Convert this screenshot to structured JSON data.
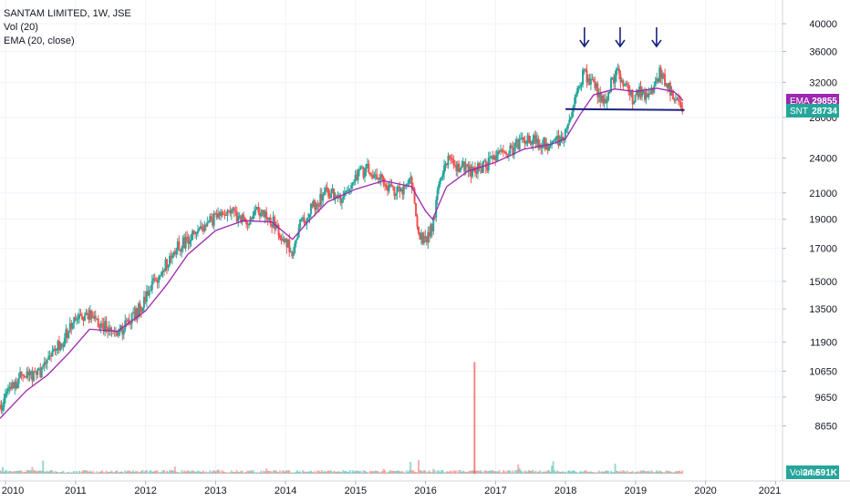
{
  "legend": {
    "symbol_line": "SANTAM LIMITED, 1W, JSE",
    "volume_line": "Vol (20)",
    "ema_line": "EMA (20, close)"
  },
  "badges": {
    "ema": {
      "label": "EMA",
      "value": "29855",
      "color": "#9c27b0"
    },
    "price": {
      "label": "SNT",
      "value": "28734",
      "color": "#26a69a"
    },
    "volume": {
      "label": "Volume",
      "value": "24.591K",
      "color": "#26a69a"
    }
  },
  "chart_data": {
    "type": "candlestick",
    "y_scale": "log",
    "ylim": [
      8000,
      42000
    ],
    "xlim": [
      2009.92,
      2021.1
    ],
    "y_ticks": [
      "40000",
      "36000",
      "32000",
      "28000",
      "24000",
      "21000",
      "19000",
      "17000",
      "15000",
      "13500",
      "11900",
      "10650",
      "9650",
      "8650"
    ],
    "x_ticks": [
      "2010",
      "2011",
      "2012",
      "2013",
      "2014",
      "2015",
      "2016",
      "2017",
      "2018",
      "2019",
      "2020",
      "2021"
    ],
    "price_path": [
      [
        2009.92,
        9300
      ],
      [
        2010.2,
        10400
      ],
      [
        2010.5,
        10600
      ],
      [
        2010.8,
        11900
      ],
      [
        2011.0,
        12900
      ],
      [
        2011.2,
        13200
      ],
      [
        2011.5,
        12400
      ],
      [
        2011.6,
        12200
      ],
      [
        2011.8,
        13000
      ],
      [
        2012.0,
        14000
      ],
      [
        2012.2,
        15500
      ],
      [
        2012.4,
        16800
      ],
      [
        2012.6,
        17600
      ],
      [
        2012.8,
        18200
      ],
      [
        2013.0,
        19200
      ],
      [
        2013.2,
        19800
      ],
      [
        2013.4,
        18800
      ],
      [
        2013.6,
        19500
      ],
      [
        2013.8,
        18900
      ],
      [
        2014.0,
        17600
      ],
      [
        2014.1,
        16500
      ],
      [
        2014.2,
        18500
      ],
      [
        2014.4,
        20000
      ],
      [
        2014.6,
        21200
      ],
      [
        2014.8,
        20300
      ],
      [
        2015.0,
        22500
      ],
      [
        2015.2,
        23000
      ],
      [
        2015.4,
        21800
      ],
      [
        2015.6,
        21000
      ],
      [
        2015.8,
        22000
      ],
      [
        2015.9,
        18000
      ],
      [
        2016.0,
        17500
      ],
      [
        2016.1,
        18500
      ],
      [
        2016.2,
        22000
      ],
      [
        2016.3,
        23800
      ],
      [
        2016.5,
        23200
      ],
      [
        2016.7,
        22800
      ],
      [
        2016.9,
        23500
      ],
      [
        2017.0,
        24000
      ],
      [
        2017.2,
        24500
      ],
      [
        2017.4,
        25800
      ],
      [
        2017.6,
        25500
      ],
      [
        2017.8,
        25200
      ],
      [
        2017.95,
        25900
      ],
      [
        2018.05,
        27500
      ],
      [
        2018.1,
        28500
      ],
      [
        2018.15,
        31000
      ],
      [
        2018.25,
        33000
      ],
      [
        2018.35,
        32500
      ],
      [
        2018.45,
        31000
      ],
      [
        2018.55,
        29200
      ],
      [
        2018.65,
        32000
      ],
      [
        2018.75,
        33500
      ],
      [
        2018.85,
        31500
      ],
      [
        2018.95,
        30000
      ],
      [
        2019.05,
        31000
      ],
      [
        2019.15,
        30300
      ],
      [
        2019.25,
        31300
      ],
      [
        2019.35,
        33200
      ],
      [
        2019.45,
        31500
      ],
      [
        2019.55,
        30500
      ],
      [
        2019.62,
        29600
      ],
      [
        2019.68,
        28734
      ]
    ],
    "ema_path": [
      [
        2009.92,
        8900
      ],
      [
        2010.3,
        9900
      ],
      [
        2010.6,
        10500
      ],
      [
        2010.9,
        11400
      ],
      [
        2011.2,
        12500
      ],
      [
        2011.6,
        12400
      ],
      [
        2012.0,
        13400
      ],
      [
        2012.3,
        14800
      ],
      [
        2012.6,
        16600
      ],
      [
        2013.0,
        18200
      ],
      [
        2013.4,
        18900
      ],
      [
        2013.8,
        18800
      ],
      [
        2014.1,
        17600
      ],
      [
        2014.3,
        18700
      ],
      [
        2014.6,
        20300
      ],
      [
        2015.0,
        21300
      ],
      [
        2015.4,
        22000
      ],
      [
        2015.8,
        21500
      ],
      [
        2016.0,
        19600
      ],
      [
        2016.1,
        19000
      ],
      [
        2016.3,
        21500
      ],
      [
        2016.6,
        22800
      ],
      [
        2017.0,
        23600
      ],
      [
        2017.4,
        24800
      ],
      [
        2017.8,
        25300
      ],
      [
        2018.0,
        25800
      ],
      [
        2018.2,
        28200
      ],
      [
        2018.4,
        30500
      ],
      [
        2018.7,
        31200
      ],
      [
        2019.0,
        30900
      ],
      [
        2019.3,
        31300
      ],
      [
        2019.55,
        30900
      ],
      [
        2019.68,
        29855
      ]
    ],
    "neckline": [
      [
        2018.0,
        28900
      ],
      [
        2019.7,
        28800
      ]
    ],
    "peak_arrows_x": [
      2018.27,
      2018.78,
      2019.3
    ],
    "volume_spike": {
      "x": 2016.7,
      "value": 2450000
    },
    "volume_axis_max": 2800000,
    "ema_value": 29855,
    "last_price": 28734,
    "series": [
      {
        "name": "SANTAM LIMITED, 1W, JSE"
      },
      {
        "name": "EMA (20, close)"
      },
      {
        "name": "Vol (20)"
      }
    ],
    "colors": {
      "up": "#26a69a",
      "down": "#ef5350",
      "ema": "#9c27b0",
      "neckline": "#1a237e",
      "arrow": "#1a237e"
    }
  }
}
